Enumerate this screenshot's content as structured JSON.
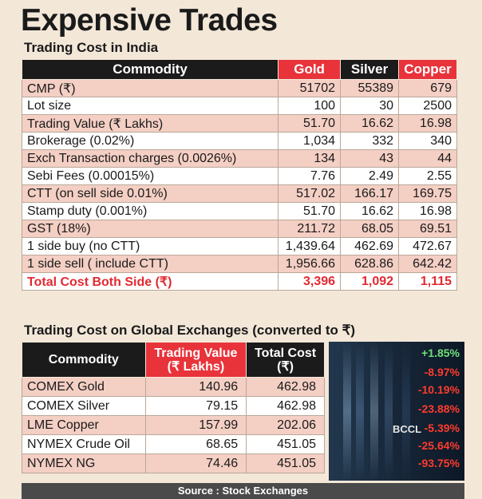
{
  "title": "Expensive Trades",
  "subtitle": "Trading Cost in India",
  "india_table": {
    "headers": [
      "Commodity",
      "Gold",
      "Silver",
      "Copper"
    ],
    "rows": [
      {
        "label": "CMP (₹)",
        "gold": "51702",
        "silver": "55389",
        "copper": "679"
      },
      {
        "label": "Lot size",
        "gold": "100",
        "silver": "30",
        "copper": "2500"
      },
      {
        "label": "Trading Value (₹ Lakhs)",
        "gold": "51.70",
        "silver": "16.62",
        "copper": "16.98"
      },
      {
        "label": "Brokerage (0.02%)",
        "gold": "1,034",
        "silver": "332",
        "copper": "340"
      },
      {
        "label": "Exch Transaction charges (0.0026%)",
        "gold": "134",
        "silver": "43",
        "copper": "44"
      },
      {
        "label": "Sebi Fees (0.00015%)",
        "gold": "7.76",
        "silver": "2.49",
        "copper": "2.55"
      },
      {
        "label": "CTT (on sell side 0.01%)",
        "gold": "517.02",
        "silver": "166.17",
        "copper": "169.75"
      },
      {
        "label": "Stamp duty (0.001%)",
        "gold": "51.70",
        "silver": "16.62",
        "copper": "16.98"
      },
      {
        "label": "GST (18%)",
        "gold": "211.72",
        "silver": "68.05",
        "copper": "69.51"
      },
      {
        "label": "1 side buy  (no CTT)",
        "gold": "1,439.64",
        "silver": "462.69",
        "copper": "472.67"
      },
      {
        "label": "1 side sell ( include CTT)",
        "gold": "1,956.66",
        "silver": "628.86",
        "copper": "642.42"
      }
    ],
    "total": {
      "label": "Total Cost Both Side (₹)",
      "gold": "3,396",
      "silver": "1,092",
      "copper": "1,115"
    }
  },
  "subtitle2": "Trading Cost on Global Exchanges (converted to ₹)",
  "global_table": {
    "header_commodity": "Commodity",
    "header_tv_line1": "Trading Value",
    "header_tv_line2": "(₹ Lakhs)",
    "header_tc_line1": "Total Cost",
    "header_tc_line2": "(₹)",
    "rows": [
      {
        "label": "COMEX Gold",
        "tv": "140.96",
        "tc": "462.98"
      },
      {
        "label": "COMEX Silver",
        "tv": "79.15",
        "tc": "462.98"
      },
      {
        "label": "LME Copper",
        "tv": "157.99",
        "tc": "202.06"
      },
      {
        "label": "NYMEX Crude Oil",
        "tv": "68.65",
        "tc": "451.05"
      },
      {
        "label": "NYMEX NG",
        "tv": "74.46",
        "tc": "451.05"
      }
    ]
  },
  "ticker": {
    "values": [
      "+1.85%",
      "-8.97%",
      "-10.19%",
      "-23.88%",
      "-5.39%",
      "-25.64%",
      "-93.75%"
    ],
    "credit": "BCCL"
  },
  "source": "Source : Stock Exchanges",
  "chart_data": [
    {
      "type": "table",
      "title": "Trading Cost in India",
      "columns": [
        "Commodity",
        "Gold",
        "Silver",
        "Copper"
      ],
      "rows": [
        [
          "CMP (₹)",
          51702,
          55389,
          679
        ],
        [
          "Lot size",
          100,
          30,
          2500
        ],
        [
          "Trading Value (₹ Lakhs)",
          51.7,
          16.62,
          16.98
        ],
        [
          "Brokerage (0.02%)",
          1034,
          332,
          340
        ],
        [
          "Exch Transaction charges (0.0026%)",
          134,
          43,
          44
        ],
        [
          "Sebi Fees (0.00015%)",
          7.76,
          2.49,
          2.55
        ],
        [
          "CTT (on sell side 0.01%)",
          517.02,
          166.17,
          169.75
        ],
        [
          "Stamp duty (0.001%)",
          51.7,
          16.62,
          16.98
        ],
        [
          "GST (18%)",
          211.72,
          68.05,
          69.51
        ],
        [
          "1 side buy  (no CTT)",
          1439.64,
          462.69,
          472.67
        ],
        [
          "1 side sell ( include CTT)",
          1956.66,
          628.86,
          642.42
        ],
        [
          "Total Cost Both Side (₹)",
          3396,
          1092,
          1115
        ]
      ]
    },
    {
      "type": "table",
      "title": "Trading Cost on Global Exchanges (converted to ₹)",
      "columns": [
        "Commodity",
        "Trading Value (₹ Lakhs)",
        "Total Cost (₹)"
      ],
      "rows": [
        [
          "COMEX Gold",
          140.96,
          462.98
        ],
        [
          "COMEX Silver",
          79.15,
          462.98
        ],
        [
          "LME Copper",
          157.99,
          202.06
        ],
        [
          "NYMEX Crude Oil",
          68.65,
          451.05
        ],
        [
          "NYMEX NG",
          74.46,
          451.05
        ]
      ]
    }
  ]
}
